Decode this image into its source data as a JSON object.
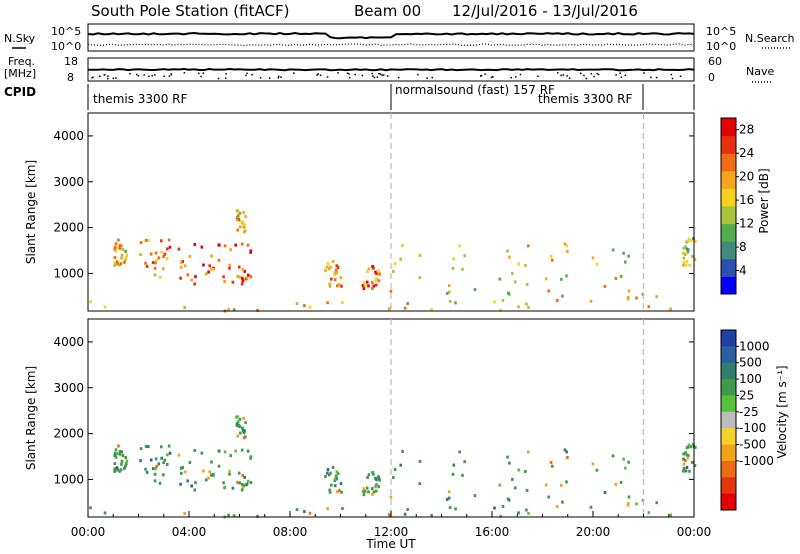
{
  "header": {
    "station": "South Pole Station (fitACF)",
    "beam": "Beam 00",
    "dates": "12/Jul/2016 - 13/Jul/2016"
  },
  "aux": {
    "nsky_label": "N.Sky",
    "nsearch_label": "N.Search",
    "noise_ticks": [
      "10^5",
      "10^0"
    ],
    "freq_label_1": "Freq.",
    "freq_label_2": "[MHz]",
    "freq_ticks": [
      "18",
      "8"
    ],
    "nave_label": "Nave",
    "nave_ticks": [
      "60",
      "0"
    ],
    "cpid_label": "CPID"
  },
  "chart_data": [
    {
      "type": "heatmap",
      "panel": "power",
      "xlabel": "",
      "ylabel": "Slant Range [km]",
      "xlim": [
        0,
        24
      ],
      "ylim": [
        180,
        4500
      ],
      "yticks": [
        1000,
        2000,
        3000,
        4000
      ],
      "colorbar": {
        "label": "Power [dB]",
        "ticks": [
          4,
          8,
          12,
          16,
          20,
          24,
          28
        ],
        "range": [
          0,
          30
        ],
        "colors": [
          "#0000ff",
          "#2c4fb0",
          "#3f8a78",
          "#4fae4f",
          "#a8c43a",
          "#f4d21e",
          "#f7a51a",
          "#f06d12",
          "#e63010",
          "#e50000"
        ]
      },
      "mode_changes_hours": [
        12.0,
        22.0
      ],
      "cpid_segments": [
        {
          "label": "themis 3300 RF",
          "start": 0,
          "end": 12
        },
        {
          "label": "normalsound (fast) 157 RF",
          "start": 12,
          "end": 22
        },
        {
          "label": "themis 3300 RF",
          "start": 17.8,
          "end": 22
        }
      ],
      "echo_regions": [
        {
          "t0": 0.0,
          "t1": 24.0,
          "r0": 200,
          "r1": 650,
          "level": 0.55
        },
        {
          "t0": 1.0,
          "t1": 1.5,
          "r0": 1200,
          "r1": 1800,
          "level": 0.6
        },
        {
          "t0": 2.0,
          "t1": 3.2,
          "r0": 900,
          "r1": 1800,
          "level": 0.7
        },
        {
          "t0": 3.5,
          "t1": 5.2,
          "r0": 800,
          "r1": 1700,
          "level": 0.8
        },
        {
          "t0": 5.3,
          "t1": 6.5,
          "r0": 800,
          "r1": 1700,
          "level": 0.85
        },
        {
          "t0": 5.8,
          "t1": 6.2,
          "r0": 1900,
          "r1": 2400,
          "level": 0.6
        },
        {
          "t0": 9.3,
          "t1": 10.0,
          "r0": 750,
          "r1": 1300,
          "level": 0.7
        },
        {
          "t0": 10.8,
          "t1": 11.5,
          "r0": 700,
          "r1": 1200,
          "level": 0.75
        },
        {
          "t0": 12.0,
          "t1": 21.5,
          "r0": 600,
          "r1": 1700,
          "level": 0.55
        },
        {
          "t0": 23.5,
          "t1": 24.0,
          "r0": 1200,
          "r1": 1800,
          "level": 0.45
        }
      ]
    },
    {
      "type": "heatmap",
      "panel": "velocity",
      "xlabel": "Time UT",
      "ylabel": "Slant Range [km]",
      "xlim": [
        0,
        24
      ],
      "ylim": [
        180,
        4500
      ],
      "xticks": [
        "00:00",
        "04:00",
        "08:00",
        "12:00",
        "16:00",
        "20:00",
        "00:00"
      ],
      "yticks": [
        1000,
        2000,
        3000,
        4000
      ],
      "colorbar": {
        "label": "Velocity [m s⁻¹]",
        "ticks": [
          1000,
          500,
          100,
          25,
          -25,
          -100,
          -500,
          -1000
        ],
        "colors": [
          "#1f3fa8",
          "#2b5fa0",
          "#2f7f6a",
          "#3f9a4a",
          "#56c23a",
          "#bdbdbd",
          "#f6d22a",
          "#f4a21c",
          "#ee6c12",
          "#e53410",
          "#e50000"
        ]
      },
      "mode_changes_hours": [
        12.0,
        22.0
      ]
    }
  ]
}
